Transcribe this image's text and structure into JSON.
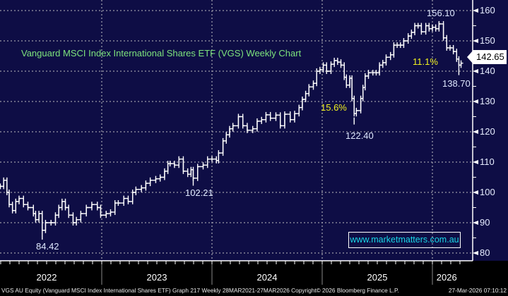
{
  "chart_data": {
    "type": "line",
    "style": "weekly price bars",
    "title": "Vanguard MSCI Index International Shares ETF (VGS) Weekly Chart",
    "xlabel": "",
    "ylabel": "",
    "xlim": [
      2021.92,
      2026.3
    ],
    "ylim": [
      77,
      163
    ],
    "yticks": [
      80,
      90,
      100,
      110,
      120,
      130,
      140,
      150,
      160
    ],
    "xticks": [
      {
        "label": "2022",
        "at": 2022.5
      },
      {
        "label": "2023",
        "at": 2023.5
      },
      {
        "label": "2024",
        "at": 2024.5
      },
      {
        "label": "2025",
        "at": 2025.5
      },
      {
        "label": "2026",
        "at": 2026.13
      }
    ],
    "year_gridlines": [
      2023,
      2024,
      2025,
      2026
    ],
    "grid": true,
    "series": [
      {
        "name": "VGS AU Equity",
        "color": "#ffffff",
        "points": [
          [
            2022.08,
            102
          ],
          [
            2022.11,
            104
          ],
          [
            2022.14,
            100
          ],
          [
            2022.16,
            96
          ],
          [
            2022.19,
            94
          ],
          [
            2022.22,
            97
          ],
          [
            2022.25,
            98
          ],
          [
            2022.29,
            96
          ],
          [
            2022.33,
            95
          ],
          [
            2022.38,
            93
          ],
          [
            2022.4,
            91
          ],
          [
            2022.43,
            93
          ],
          [
            2022.46,
            87.5
          ],
          [
            2022.49,
            90
          ],
          [
            2022.54,
            90
          ],
          [
            2022.58,
            92.5
          ],
          [
            2022.61,
            95
          ],
          [
            2022.64,
            97
          ],
          [
            2022.67,
            95
          ],
          [
            2022.7,
            92.5
          ],
          [
            2022.74,
            90
          ],
          [
            2022.77,
            91
          ],
          [
            2022.81,
            93
          ],
          [
            2022.86,
            95
          ],
          [
            2022.91,
            96
          ],
          [
            2022.96,
            95
          ],
          [
            2022.99,
            92.5
          ],
          [
            2023.04,
            93
          ],
          [
            2023.08,
            93.5
          ],
          [
            2023.12,
            96.5
          ],
          [
            2023.15,
            96.5
          ],
          [
            2023.2,
            98
          ],
          [
            2023.24,
            97
          ],
          [
            2023.28,
            100
          ],
          [
            2023.31,
            101
          ],
          [
            2023.36,
            101.5
          ],
          [
            2023.4,
            103
          ],
          [
            2023.44,
            104
          ],
          [
            2023.49,
            104.5
          ],
          [
            2023.53,
            105
          ],
          [
            2023.57,
            107
          ],
          [
            2023.6,
            109.5
          ],
          [
            2023.62,
            109.5
          ],
          [
            2023.66,
            109
          ],
          [
            2023.7,
            111
          ],
          [
            2023.74,
            107
          ],
          [
            2023.78,
            106
          ],
          [
            2023.81,
            107.5
          ],
          [
            2023.83,
            104.7
          ],
          [
            2023.87,
            108.5
          ],
          [
            2023.92,
            109
          ],
          [
            2023.96,
            111
          ],
          [
            2024.0,
            111
          ],
          [
            2024.04,
            110.5
          ],
          [
            2024.06,
            113
          ],
          [
            2024.1,
            117
          ],
          [
            2024.13,
            119
          ],
          [
            2024.16,
            121
          ],
          [
            2024.19,
            122
          ],
          [
            2024.24,
            125
          ],
          [
            2024.28,
            122
          ],
          [
            2024.32,
            120.5
          ],
          [
            2024.37,
            121
          ],
          [
            2024.41,
            123.5
          ],
          [
            2024.45,
            124
          ],
          [
            2024.49,
            125.6
          ],
          [
            2024.53,
            124.5
          ],
          [
            2024.58,
            125.5
          ],
          [
            2024.62,
            122
          ],
          [
            2024.66,
            125.8
          ],
          [
            2024.71,
            124
          ],
          [
            2024.75,
            126
          ],
          [
            2024.79,
            128
          ],
          [
            2024.82,
            130.7
          ],
          [
            2024.85,
            132.6
          ],
          [
            2024.88,
            134.8
          ],
          [
            2024.92,
            136
          ],
          [
            2024.95,
            140
          ],
          [
            2024.98,
            140.5
          ],
          [
            2025.01,
            142
          ],
          [
            2025.04,
            140
          ],
          [
            2025.08,
            142.3
          ],
          [
            2025.11,
            143.5
          ],
          [
            2025.14,
            143
          ],
          [
            2025.17,
            142
          ],
          [
            2025.2,
            138
          ],
          [
            2025.22,
            135.4
          ],
          [
            2025.25,
            137.7
          ],
          [
            2025.27,
            131
          ],
          [
            2025.29,
            126
          ],
          [
            2025.31,
            127
          ],
          [
            2025.35,
            131
          ],
          [
            2025.37,
            134.6
          ],
          [
            2025.39,
            138.4
          ],
          [
            2025.42,
            139.5
          ],
          [
            2025.46,
            139.5
          ],
          [
            2025.49,
            139.5
          ],
          [
            2025.52,
            142
          ],
          [
            2025.55,
            142.8
          ],
          [
            2025.58,
            144.6
          ],
          [
            2025.62,
            145.4
          ],
          [
            2025.65,
            148.6
          ],
          [
            2025.68,
            148.6
          ],
          [
            2025.71,
            148.6
          ],
          [
            2025.74,
            150
          ],
          [
            2025.78,
            151.6
          ],
          [
            2025.81,
            152.8
          ],
          [
            2025.84,
            155
          ],
          [
            2025.87,
            155
          ],
          [
            2025.9,
            153
          ],
          [
            2025.94,
            155
          ],
          [
            2025.97,
            154
          ],
          [
            2026.0,
            154.5
          ],
          [
            2026.03,
            154
          ],
          [
            2026.06,
            155.6
          ],
          [
            2026.1,
            151
          ],
          [
            2026.13,
            147.7
          ],
          [
            2026.16,
            147.7
          ],
          [
            2026.19,
            146.5
          ],
          [
            2026.22,
            144
          ],
          [
            2026.24,
            142
          ],
          [
            2026.26,
            142.65
          ]
        ]
      }
    ],
    "annotations": {
      "high": "156.10",
      "drop_2026": "11.1%",
      "last_price": "142.65",
      "low_2026": "138.70",
      "drop_2025": "15.6%",
      "low_2025": "122.40",
      "low_2023": "102.21",
      "low_2022": "84.42"
    },
    "annotation_points": {
      "high": [
        2026.06,
        156.1
      ],
      "low_2026": [
        2026.24,
        138.7
      ],
      "low_2025": [
        2025.29,
        122.4
      ],
      "low_2023": [
        2023.83,
        102.21
      ],
      "low_2022": [
        2022.46,
        84.42
      ]
    },
    "colors": {
      "background": "#0e0d45",
      "price": "#ffffff",
      "title": "#7de37d",
      "percent": "#f0f020",
      "watermark": "#19d7e6",
      "grid": "#9a9aa8"
    }
  },
  "watermark": "www.marketmatters.com.au",
  "footer": {
    "left": "VGS AU Equity (Vanguard MSCI Index International Shares ETF) Graph 217 Weekly 28MAR2021-27MAR2026  Copyright© 2026 Bloomberg Finance L.P.",
    "right": "27-Mar-2026 07:10:12"
  }
}
